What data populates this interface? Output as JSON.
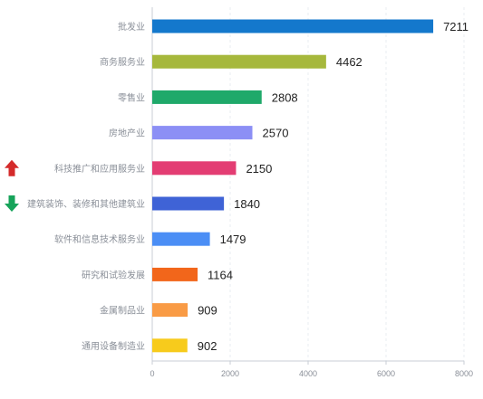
{
  "chart_data": {
    "type": "bar",
    "orientation": "horizontal",
    "categories": [
      "批发业",
      "商务服务业",
      "零售业",
      "房地产业",
      "科技推广和应用服务业",
      "建筑装饰、装修和其他建筑业",
      "软件和信息技术服务业",
      "研究和试验发展",
      "金属制品业",
      "通用设备制造业"
    ],
    "values": [
      7211,
      4462,
      2808,
      2570,
      2150,
      1840,
      1479,
      1164,
      909,
      902
    ],
    "colors": [
      "#1478cc",
      "#a6b83c",
      "#1fa96a",
      "#8c8ff5",
      "#e33d73",
      "#3f63d6",
      "#4b8ef5",
      "#f2661b",
      "#f99b45",
      "#f7cb1c"
    ],
    "trend_markers": [
      {
        "category_index": 4,
        "direction": "up",
        "color": "#d42b2b",
        "icon": "up-arrow-icon"
      },
      {
        "category_index": 5,
        "direction": "down",
        "color": "#17a35a",
        "icon": "down-arrow-icon"
      }
    ],
    "xlim": [
      0,
      8000
    ],
    "xticks": [
      0,
      2000,
      4000,
      6000,
      8000
    ],
    "grid": true,
    "title": "",
    "xlabel": "",
    "ylabel": ""
  }
}
